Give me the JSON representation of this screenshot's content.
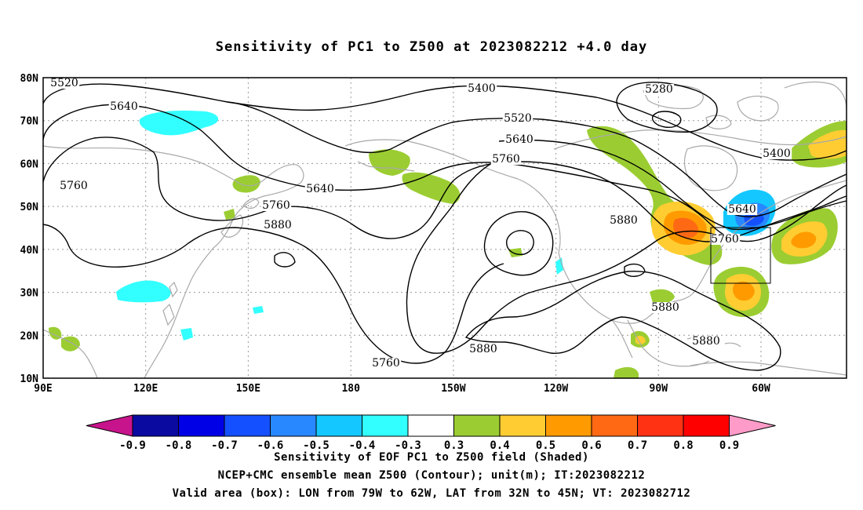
{
  "title": "Sensitivity of PC1 to Z500 at 2023082212 +4.0 day",
  "map": {
    "lat_labels": [
      "80N",
      "70N",
      "60N",
      "50N",
      "40N",
      "30N",
      "20N",
      "10N"
    ],
    "lon_labels": [
      "90E",
      "120E",
      "150E",
      "180",
      "150W",
      "120W",
      "90W",
      "60W"
    ],
    "lon_range": [
      90,
      325
    ],
    "lat_range": [
      10,
      80
    ],
    "contour_labels": [
      "5520",
      "5640",
      "5760",
      "5400",
      "5520",
      "5640",
      "5760",
      "5640",
      "5760",
      "5880",
      "5280",
      "5400",
      "5640",
      "5760",
      "5880",
      "5880",
      "5880",
      "5880",
      "5760"
    ],
    "contour_levels_m": [
      5280,
      5400,
      5520,
      5640,
      5760,
      5880
    ],
    "valid_box": {
      "lon_west": -79,
      "lon_east": -62,
      "lat_south": 32,
      "lat_north": 45
    }
  },
  "colorbar": {
    "labels": [
      "-0.9",
      "-0.8",
      "-0.7",
      "-0.6",
      "-0.5",
      "-0.4",
      "-0.3",
      "0.3",
      "0.4",
      "0.5",
      "0.6",
      "0.7",
      "0.8",
      "0.9"
    ],
    "colors": [
      "#0a0aa0",
      "#0000e6",
      "#1450ff",
      "#2888ff",
      "#14c8ff",
      "#32ffff",
      "#ffffff",
      "#9bcd32",
      "#ffcd32",
      "#ff9b00",
      "#ff6914",
      "#ff3214",
      "#ff0000"
    ],
    "low_color": "#c8148c",
    "high_color": "#ff9bc8"
  },
  "footer": {
    "line1": "Sensitivity of EOF PC1 to Z500 field (Shaded)",
    "line2": "NCEP+CMC ensemble mean Z500 (Contour); unit(m); IT:2023082212",
    "line3": "Valid area (box): LON from 79W to 62W, LAT from 32N to 45N; VT: 2023082712"
  }
}
